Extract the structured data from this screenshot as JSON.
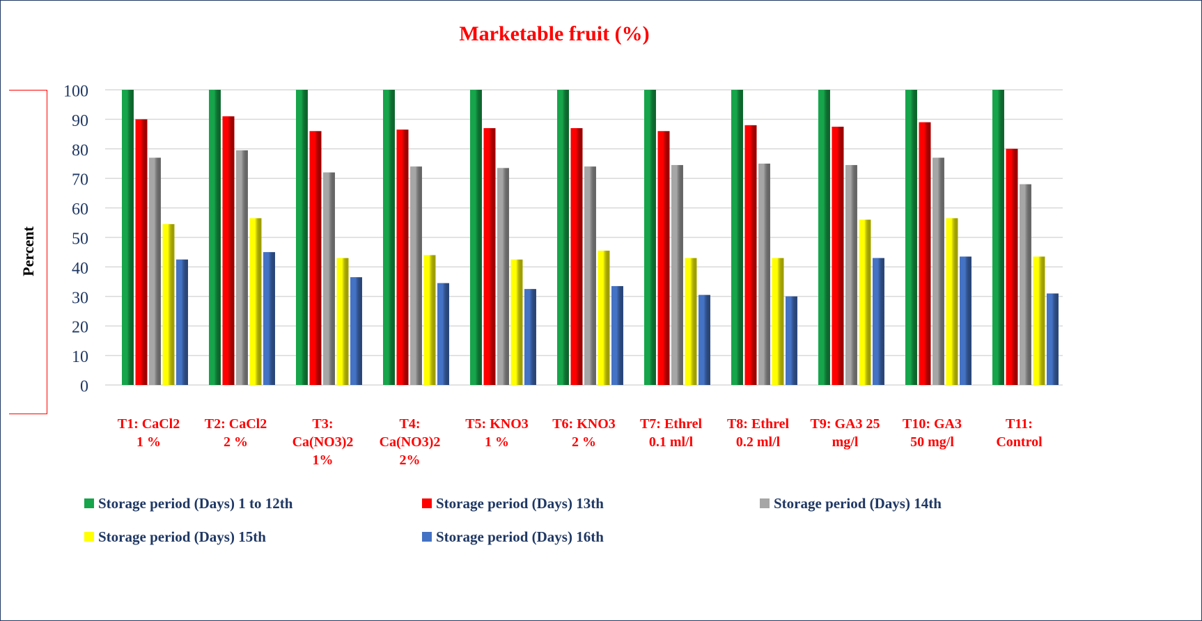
{
  "chart_data": {
    "type": "bar",
    "title": "Marketable fruit (%)",
    "y_label": "Percent",
    "categories": [
      "T1: CaCl2 1 %",
      "T2: CaCl2 2 %",
      "T3: Ca(NO3)2 1%",
      "T4: Ca(NO3)2 2%",
      "T5: KNO3 1 %",
      "T6: KNO3 2 %",
      "T7: Ethrel 0.1 ml/l",
      "T8: Ethrel 0.2 ml/l",
      "T9: GA3 25 mg/l",
      "T10: GA3 50 mg/l",
      "T11: Control"
    ],
    "series": [
      {
        "name": "Storage period (Days) 1 to 12th",
        "color": "#16a54a",
        "values": [
          100,
          100,
          100,
          100,
          100,
          100,
          100,
          100,
          100,
          100,
          100
        ]
      },
      {
        "name": "Storage period (Days) 13th",
        "color": "#ff0000",
        "values": [
          90,
          91,
          86,
          86.5,
          87,
          87,
          86,
          88,
          87.5,
          89,
          80
        ]
      },
      {
        "name": "Storage period (Days) 14th",
        "color": "#a6a6a6",
        "values": [
          77,
          79.5,
          72,
          74,
          73.5,
          74,
          74.5,
          75,
          74.5,
          77,
          68
        ]
      },
      {
        "name": "Storage period (Days) 15th",
        "color": "#ffff00",
        "values": [
          54.5,
          56.5,
          43,
          44,
          42.5,
          45.5,
          43,
          43,
          56,
          56.5,
          43.5
        ]
      },
      {
        "name": "Storage period (Days) 16th",
        "color": "#4472c4",
        "values": [
          42.5,
          45,
          36.5,
          34.5,
          32.5,
          33.5,
          30.5,
          30,
          43,
          43.5,
          31
        ]
      }
    ],
    "ylim": [
      0,
      100
    ],
    "yticks": [
      0,
      10,
      20,
      30,
      40,
      50,
      60,
      70,
      80,
      90,
      100
    ],
    "grid": true
  }
}
